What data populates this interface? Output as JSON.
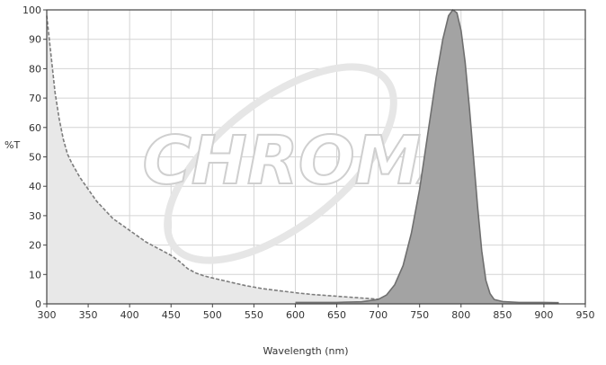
{
  "watermark": "CHROMA",
  "chart_data": {
    "type": "area",
    "xlabel": "Wavelength (nm)",
    "ylabel": "%T",
    "xlim": [
      300,
      950
    ],
    "ylim": [
      0,
      100
    ],
    "x_ticks": [
      300,
      350,
      400,
      450,
      500,
      550,
      600,
      650,
      700,
      750,
      800,
      850,
      900,
      950
    ],
    "y_ticks": [
      0,
      10,
      20,
      30,
      40,
      50,
      60,
      70,
      80,
      90,
      100
    ],
    "grid": true,
    "series": [
      {
        "style": "dashed",
        "fill": "#e8e8e8",
        "stroke": "#7d7d7d",
        "points": [
          [
            300,
            98
          ],
          [
            305,
            85
          ],
          [
            310,
            72
          ],
          [
            315,
            63
          ],
          [
            320,
            56
          ],
          [
            325,
            51
          ],
          [
            330,
            48
          ],
          [
            340,
            43
          ],
          [
            350,
            39
          ],
          [
            360,
            35
          ],
          [
            370,
            32
          ],
          [
            380,
            29
          ],
          [
            390,
            27
          ],
          [
            400,
            25
          ],
          [
            410,
            23
          ],
          [
            420,
            21
          ],
          [
            430,
            19.5
          ],
          [
            440,
            18
          ],
          [
            450,
            16.5
          ],
          [
            460,
            14.5
          ],
          [
            470,
            12
          ],
          [
            480,
            10.5
          ],
          [
            490,
            9.5
          ],
          [
            500,
            8.8
          ],
          [
            520,
            7.5
          ],
          [
            540,
            6.2
          ],
          [
            560,
            5.2
          ],
          [
            580,
            4.5
          ],
          [
            600,
            3.8
          ],
          [
            620,
            3.2
          ],
          [
            650,
            2.6
          ],
          [
            680,
            2.0
          ],
          [
            700,
            1.6
          ],
          [
            720,
            1.3
          ],
          [
            750,
            1.0
          ],
          [
            778,
            0.8
          ]
        ]
      },
      {
        "style": "solid",
        "fill": "#a3a3a3",
        "stroke": "#6f6f6f",
        "points": [
          [
            600,
            0.5
          ],
          [
            650,
            0.5
          ],
          [
            680,
            0.7
          ],
          [
            700,
            1.5
          ],
          [
            710,
            3
          ],
          [
            720,
            6.5
          ],
          [
            730,
            13
          ],
          [
            740,
            24
          ],
          [
            750,
            39
          ],
          [
            760,
            58
          ],
          [
            770,
            77
          ],
          [
            778,
            90
          ],
          [
            785,
            98
          ],
          [
            790,
            100
          ],
          [
            795,
            99
          ],
          [
            800,
            93
          ],
          [
            805,
            82
          ],
          [
            810,
            67
          ],
          [
            815,
            50
          ],
          [
            820,
            33
          ],
          [
            825,
            18
          ],
          [
            830,
            8
          ],
          [
            835,
            3.5
          ],
          [
            840,
            1.5
          ],
          [
            850,
            0.8
          ],
          [
            870,
            0.5
          ],
          [
            900,
            0.5
          ],
          [
            918,
            0.4
          ]
        ]
      }
    ]
  }
}
